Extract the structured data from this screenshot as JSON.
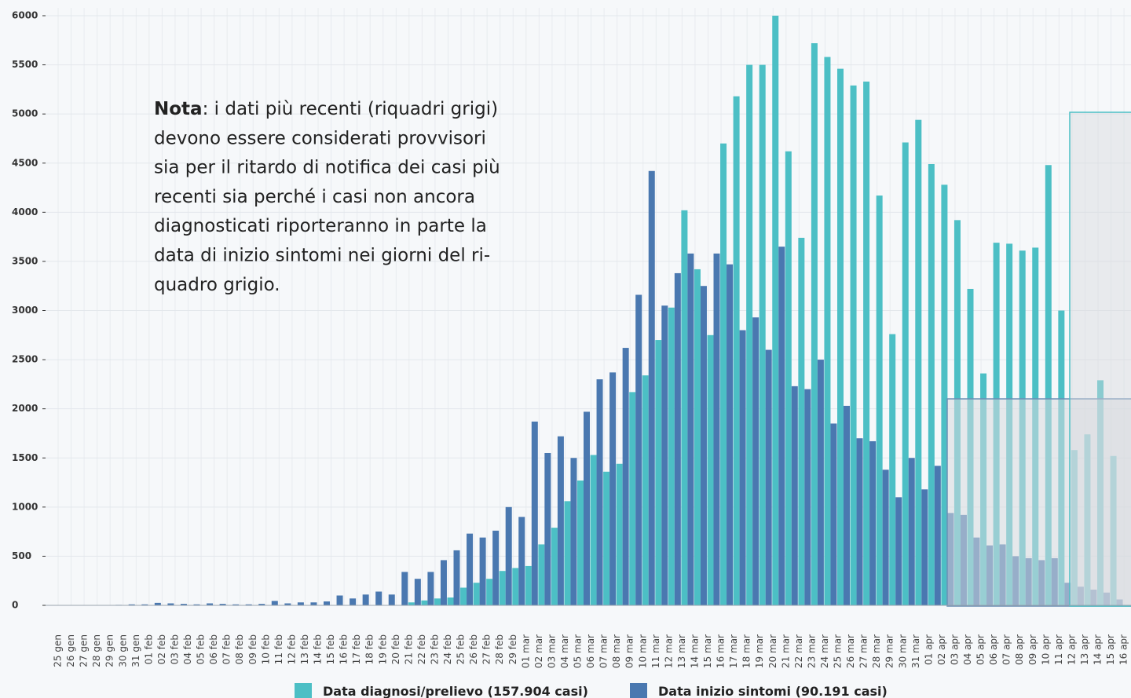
{
  "chart_data": {
    "type": "bar",
    "note_label": "Nota",
    "note_lines": [
      ": i dati più recenti (riquadri grigi)",
      "devono essere considerati provvisori",
      "sia per il ritardo di notifica dei casi più",
      "recenti sia perché i casi non ancora",
      "diagnosticati riporteranno in parte la",
      "data di inizio sintomi nei giorni del ri-",
      "quadro grigio."
    ],
    "categories": [
      "25 gen",
      "26 gen",
      "27 gen",
      "28 gen",
      "29 gen",
      "30 gen",
      "31 gen",
      "01 feb",
      "02 feb",
      "03 feb",
      "04 feb",
      "05 feb",
      "06 feb",
      "07 feb",
      "08 feb",
      "09 feb",
      "10 feb",
      "11 feb",
      "12 feb",
      "13 feb",
      "14 feb",
      "15 feb",
      "16 feb",
      "17 feb",
      "18 feb",
      "19 feb",
      "20 feb",
      "21 feb",
      "22 feb",
      "23 feb",
      "24 feb",
      "25 feb",
      "26 feb",
      "27 feb",
      "28 feb",
      "29 feb",
      "01 mar",
      "02 mar",
      "03 mar",
      "04 mar",
      "05 mar",
      "06 mar",
      "07 mar",
      "08 mar",
      "09 mar",
      "10 mar",
      "11 mar",
      "12 mar",
      "13 mar",
      "14 mar",
      "15 mar",
      "16 mar",
      "17 mar",
      "18 mar",
      "19 mar",
      "20 mar",
      "21 mar",
      "22 mar",
      "23 mar",
      "24 mar",
      "25 mar",
      "26 mar",
      "27 mar",
      "28 mar",
      "29 mar",
      "30 mar",
      "31 mar",
      "01 apr",
      "02 apr",
      "03 apr",
      "04 apr",
      "05 apr",
      "06 apr",
      "07 apr",
      "08 apr",
      "09 apr",
      "10 apr",
      "11 apr",
      "12 apr",
      "13 apr",
      "14 apr",
      "15 apr",
      "16 apr"
    ],
    "series": [
      {
        "name": "Data diagnosi/prelievo (157.904 casi)",
        "color": "#4cbfc5",
        "values": [
          0,
          0,
          0,
          0,
          0,
          0,
          0,
          0,
          0,
          0,
          0,
          0,
          0,
          0,
          0,
          0,
          0,
          0,
          0,
          0,
          0,
          0,
          0,
          0,
          0,
          0,
          0,
          30,
          50,
          70,
          80,
          180,
          230,
          270,
          350,
          380,
          400,
          620,
          790,
          1060,
          1270,
          1530,
          1360,
          1440,
          2170,
          2340,
          2700,
          3030,
          4020,
          3420,
          2750,
          4700,
          5180,
          5500,
          5500,
          6000,
          4620,
          3740,
          5720,
          5580,
          5460,
          5290,
          5330,
          4170,
          2760,
          4710,
          4940,
          4490,
          4280,
          3920,
          3220,
          2360,
          3690,
          3680,
          3610,
          3640,
          4480,
          3000,
          1580,
          1740,
          2290,
          1520,
          0
        ]
      },
      {
        "name": "Data inizio sintomi (90.191 casi)",
        "color": "#4a78b0",
        "values": [
          0,
          0,
          0,
          0,
          5,
          10,
          10,
          25,
          20,
          15,
          10,
          20,
          15,
          10,
          10,
          15,
          45,
          20,
          30,
          30,
          40,
          100,
          70,
          110,
          140,
          110,
          340,
          270,
          340,
          460,
          560,
          730,
          690,
          760,
          1000,
          900,
          1870,
          1550,
          1720,
          1500,
          1970,
          2300,
          2370,
          2620,
          3160,
          4420,
          3050,
          3380,
          3580,
          3250,
          3580,
          3470,
          2800,
          2930,
          2600,
          3650,
          2230,
          2200,
          2500,
          1850,
          2030,
          1700,
          1670,
          1380,
          1100,
          1500,
          1180,
          1420,
          940,
          920,
          690,
          610,
          620,
          500,
          480,
          460,
          480,
          230,
          190,
          160,
          130,
          60,
          0
        ]
      }
    ],
    "ylim": [
      0,
      6000
    ],
    "yticks": [
      0,
      500,
      1000,
      1500,
      2000,
      2500,
      3000,
      3500,
      4000,
      4500,
      5000,
      5500,
      6000
    ],
    "grid": true
  }
}
